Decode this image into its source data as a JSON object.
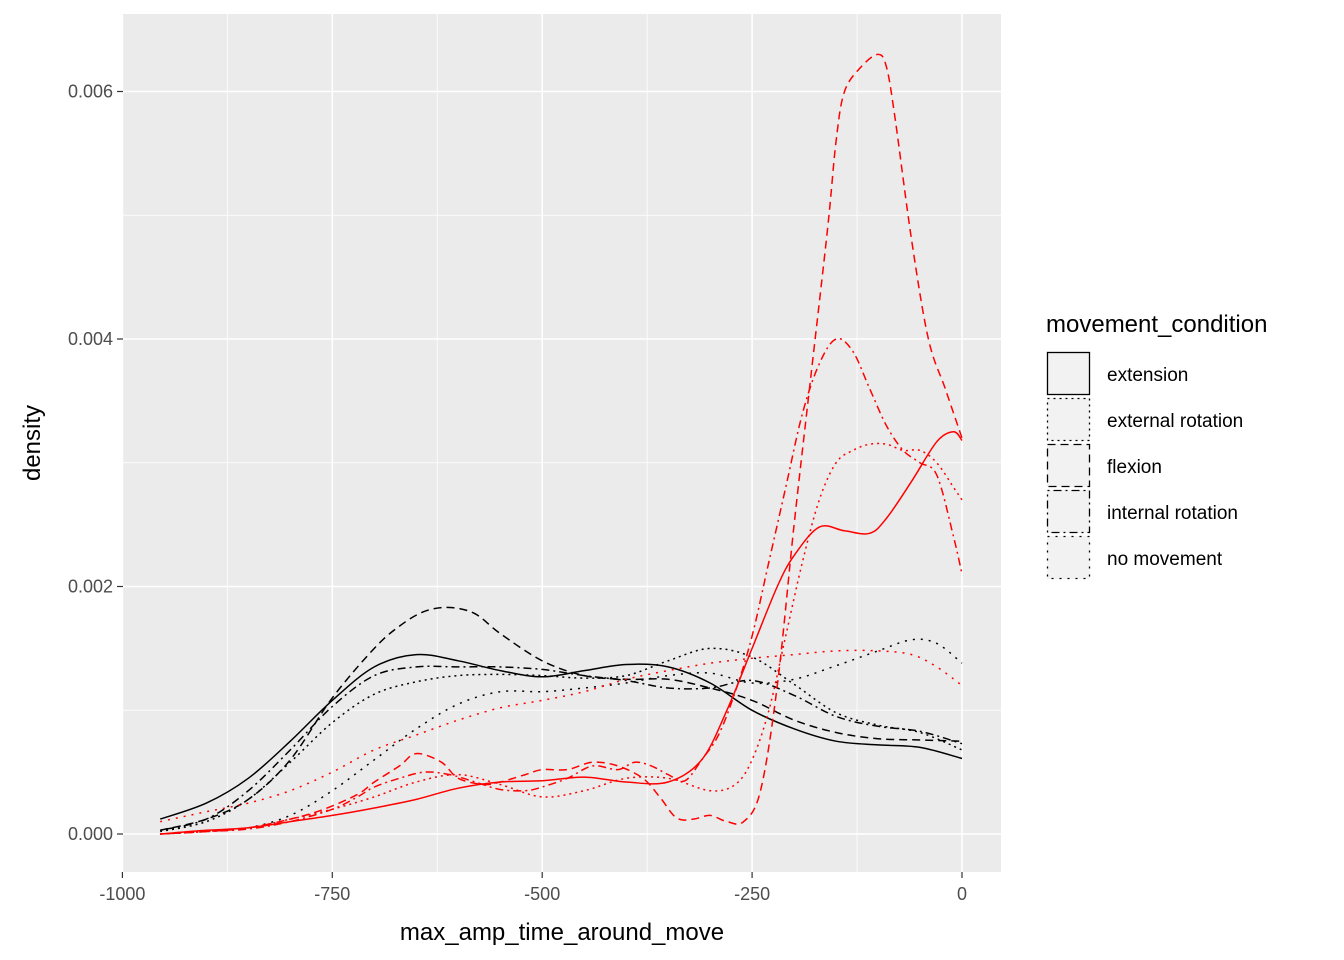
{
  "chart_data": {
    "type": "line",
    "subtype": "density",
    "xlabel": "max_amp_time_around_move",
    "ylabel": "density",
    "xlim": [
      -1000,
      0
    ],
    "ylim": [
      0,
      0.0065
    ],
    "x_ticks": [
      -1000,
      -750,
      -500,
      -250,
      0
    ],
    "x_tick_labels": [
      "-1000",
      "-750",
      "-500",
      "-250",
      "0"
    ],
    "y_ticks": [
      0,
      0.002,
      0.004,
      0.006
    ],
    "y_tick_labels": [
      "0.000",
      "0.002",
      "0.004",
      "0.006"
    ],
    "grid": true,
    "legend": {
      "title": "movement_condition",
      "position": "right",
      "entries": [
        {
          "label": "extension",
          "linetype": "solid"
        },
        {
          "label": "external rotation",
          "linetype": "dotted"
        },
        {
          "label": "flexion",
          "linetype": "dashed"
        },
        {
          "label": "internal rotation",
          "linetype": "dotdash"
        },
        {
          "label": "no movement",
          "linetype": "longdotted"
        }
      ]
    },
    "colors": {
      "black_group": "#000000",
      "red_group": "#ff0000",
      "panel": "#ebebeb",
      "grid": "#ffffff"
    },
    "series": [
      {
        "group": "black",
        "linetype": "solid",
        "x": [
          -955,
          -900,
          -850,
          -800,
          -750,
          -700,
          -650,
          -600,
          -550,
          -500,
          -450,
          -400,
          -350,
          -300,
          -250,
          -200,
          -150,
          -100,
          -50,
          0
        ],
        "y": [
          0.00012,
          0.00025,
          0.00045,
          0.00075,
          0.00108,
          0.00135,
          0.00145,
          0.0014,
          0.00132,
          0.00127,
          0.00132,
          0.00137,
          0.00135,
          0.00122,
          0.001,
          0.00085,
          0.00075,
          0.00072,
          0.0007,
          0.00061
        ]
      },
      {
        "group": "black",
        "linetype": "dashed",
        "x": [
          -955,
          -900,
          -850,
          -800,
          -750,
          -700,
          -670,
          -640,
          -610,
          -580,
          -550,
          -500,
          -450,
          -400,
          -350,
          -300,
          -250,
          -200,
          -150,
          -100,
          -50,
          0
        ],
        "y": [
          3e-05,
          0.00012,
          0.00028,
          0.0006,
          0.0011,
          0.0015,
          0.00168,
          0.0018,
          0.00183,
          0.00178,
          0.00162,
          0.0014,
          0.00128,
          0.00125,
          0.00125,
          0.00118,
          0.00108,
          0.00092,
          0.00082,
          0.00077,
          0.00076,
          0.00075
        ]
      },
      {
        "group": "black",
        "linetype": "dotdash",
        "x": [
          -955,
          -900,
          -850,
          -800,
          -750,
          -700,
          -650,
          -600,
          -550,
          -500,
          -450,
          -400,
          -350,
          -300,
          -250,
          -200,
          -150,
          -100,
          -50,
          0
        ],
        "y": [
          3e-05,
          0.00012,
          0.00035,
          0.00068,
          0.00103,
          0.00128,
          0.00135,
          0.00135,
          0.00135,
          0.00133,
          0.00128,
          0.00124,
          0.00118,
          0.00118,
          0.00124,
          0.00112,
          0.00095,
          0.00087,
          0.00083,
          0.00073
        ]
      },
      {
        "group": "black",
        "linetype": "dotted",
        "x": [
          -955,
          -900,
          -850,
          -800,
          -750,
          -700,
          -650,
          -600,
          -550,
          -500,
          -450,
          -400,
          -350,
          -300,
          -250,
          -200,
          -150,
          -100,
          -50,
          0
        ],
        "y": [
          2e-05,
          0.0001,
          0.00028,
          0.00058,
          0.0009,
          0.00113,
          0.00123,
          0.00128,
          0.00129,
          0.00128,
          0.00126,
          0.00128,
          0.0014,
          0.0015,
          0.00143,
          0.00121,
          0.00098,
          0.00088,
          0.00082,
          0.00068
        ]
      },
      {
        "group": "black",
        "linetype": "longdotted",
        "x": [
          -955,
          -900,
          -850,
          -800,
          -750,
          -700,
          -650,
          -600,
          -550,
          -500,
          -450,
          -400,
          -350,
          -300,
          -250,
          -200,
          -150,
          -100,
          -60,
          -30,
          0
        ],
        "y": [
          0.0,
          2e-05,
          5e-05,
          0.00015,
          0.00035,
          0.0006,
          0.00085,
          0.00105,
          0.00115,
          0.00115,
          0.00118,
          0.00122,
          0.00128,
          0.0013,
          0.00122,
          0.00125,
          0.00136,
          0.00148,
          0.00157,
          0.00154,
          0.00138
        ]
      },
      {
        "group": "red",
        "linetype": "solid",
        "x": [
          -955,
          -900,
          -850,
          -800,
          -750,
          -700,
          -650,
          -600,
          -550,
          -500,
          -450,
          -400,
          -350,
          -310,
          -280,
          -250,
          -220,
          -200,
          -170,
          -140,
          -110,
          -90,
          -60,
          -30,
          -10,
          0
        ],
        "y": [
          0.0,
          3e-05,
          5e-05,
          0.0001,
          0.00015,
          0.00021,
          0.00028,
          0.00037,
          0.00042,
          0.00043,
          0.00046,
          0.00042,
          0.00042,
          0.0006,
          0.001,
          0.0015,
          0.002,
          0.00225,
          0.00248,
          0.00245,
          0.00243,
          0.00255,
          0.00285,
          0.00317,
          0.00325,
          0.00318
        ]
      },
      {
        "group": "red",
        "linetype": "dashed",
        "x": [
          -955,
          -900,
          -850,
          -800,
          -760,
          -720,
          -700,
          -670,
          -650,
          -620,
          -600,
          -570,
          -550,
          -520,
          -500,
          -470,
          -440,
          -410,
          -380,
          -360,
          -340,
          -320,
          -300,
          -280,
          -260,
          -240,
          -220,
          -200,
          -180,
          -160,
          -150,
          -140,
          -120,
          -100,
          -90,
          -80,
          -60,
          -40,
          -20,
          0
        ],
        "y": [
          0.0,
          2e-05,
          5e-05,
          0.00012,
          0.0002,
          0.00032,
          0.00042,
          0.00055,
          0.00065,
          0.00058,
          0.00045,
          0.0004,
          0.00042,
          0.00048,
          0.00052,
          0.00052,
          0.00058,
          0.00055,
          0.00045,
          0.0003,
          0.00013,
          0.00012,
          0.00015,
          0.0001,
          0.0001,
          0.00035,
          0.0012,
          0.0025,
          0.0037,
          0.0049,
          0.0056,
          0.006,
          0.0062,
          0.0063,
          0.0062,
          0.0058,
          0.0048,
          0.004,
          0.0036,
          0.0032
        ]
      },
      {
        "group": "red",
        "linetype": "dotdash",
        "x": [
          -955,
          -900,
          -850,
          -800,
          -750,
          -720,
          -700,
          -670,
          -640,
          -610,
          -580,
          -550,
          -520,
          -500,
          -470,
          -440,
          -410,
          -390,
          -370,
          -350,
          -330,
          -310,
          -290,
          -270,
          -250,
          -230,
          -210,
          -190,
          -170,
          -150,
          -130,
          -110,
          -90,
          -70,
          -50,
          -30,
          -10,
          0
        ],
        "y": [
          0.0,
          2e-05,
          4e-05,
          0.0001,
          0.0002,
          0.0003,
          0.00038,
          0.00045,
          0.0005,
          0.00048,
          0.00042,
          0.00036,
          0.00035,
          0.00038,
          0.00045,
          0.00055,
          0.00052,
          0.00058,
          0.00055,
          0.00048,
          0.00043,
          0.0006,
          0.0008,
          0.00115,
          0.0016,
          0.0022,
          0.0028,
          0.0034,
          0.0038,
          0.004,
          0.0039,
          0.0036,
          0.0033,
          0.0031,
          0.003,
          0.0029,
          0.0024,
          0.0021
        ]
      },
      {
        "group": "red",
        "linetype": "dotted",
        "x": [
          -955,
          -900,
          -850,
          -800,
          -750,
          -700,
          -650,
          -600,
          -550,
          -500,
          -450,
          -400,
          -350,
          -300,
          -270,
          -250,
          -230,
          -210,
          -190,
          -170,
          -150,
          -130,
          -110,
          -90,
          -70,
          -50,
          -30,
          -10,
          0
        ],
        "y": [
          0.0,
          2e-05,
          5e-05,
          0.00012,
          0.0002,
          0.0003,
          0.00042,
          0.00048,
          0.0004,
          0.0003,
          0.00035,
          0.00045,
          0.00045,
          0.00035,
          0.0004,
          0.0006,
          0.001,
          0.0016,
          0.0022,
          0.0027,
          0.003,
          0.0031,
          0.00315,
          0.00315,
          0.0031,
          0.0031,
          0.003,
          0.0028,
          0.0027
        ]
      },
      {
        "group": "red",
        "linetype": "longdotted",
        "x": [
          -955,
          -900,
          -850,
          -800,
          -750,
          -700,
          -650,
          -600,
          -550,
          -500,
          -450,
          -400,
          -350,
          -300,
          -250,
          -200,
          -150,
          -100,
          -60,
          -30,
          0
        ],
        "y": [
          0.0001,
          0.00018,
          0.00025,
          0.00035,
          0.0005,
          0.00068,
          0.0008,
          0.00092,
          0.00102,
          0.00108,
          0.00115,
          0.00125,
          0.00132,
          0.00138,
          0.00142,
          0.00145,
          0.00148,
          0.00148,
          0.00145,
          0.00135,
          0.0012
        ]
      }
    ]
  }
}
